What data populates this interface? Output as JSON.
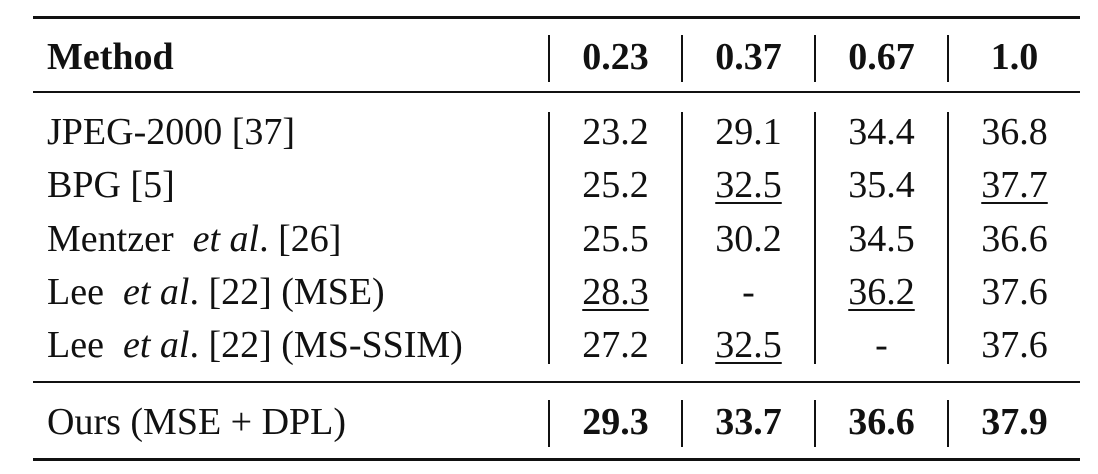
{
  "table": {
    "sections": [
      {
        "rows": [
          {
            "method": [
              {
                "text": "Method",
                "bold": true
              }
            ],
            "cells": [
              {
                "text": "0.23",
                "bold": true
              },
              {
                "text": "0.37",
                "bold": true
              },
              {
                "text": "0.67",
                "bold": true
              },
              {
                "text": "1.0",
                "bold": true
              }
            ]
          }
        ]
      },
      {
        "rows": [
          {
            "method": [
              {
                "text": "JPEG-2000 [37]"
              }
            ],
            "cells": [
              {
                "text": "23.2"
              },
              {
                "text": "29.1"
              },
              {
                "text": "34.4"
              },
              {
                "text": "36.8"
              }
            ]
          },
          {
            "method": [
              {
                "text": "BPG [5]"
              }
            ],
            "cells": [
              {
                "text": "25.2"
              },
              {
                "text": "32.5",
                "underline": true
              },
              {
                "text": "35.4"
              },
              {
                "text": "37.7",
                "underline": true
              }
            ]
          },
          {
            "method": [
              {
                "text": "Mentzer  "
              },
              {
                "text": "et al",
                "italic": true
              },
              {
                "text": ". [26]"
              }
            ],
            "cells": [
              {
                "text": "25.5"
              },
              {
                "text": "30.2"
              },
              {
                "text": "34.5"
              },
              {
                "text": "36.6"
              }
            ]
          },
          {
            "method": [
              {
                "text": "Lee  "
              },
              {
                "text": "et al",
                "italic": true
              },
              {
                "text": ". [22] (MSE)"
              }
            ],
            "cells": [
              {
                "text": "28.3",
                "underline": true
              },
              {
                "text": "-"
              },
              {
                "text": "36.2",
                "underline": true
              },
              {
                "text": "37.6"
              }
            ]
          },
          {
            "method": [
              {
                "text": "Lee  "
              },
              {
                "text": "et al",
                "italic": true
              },
              {
                "text": ". [22] (MS-SSIM)"
              }
            ],
            "cells": [
              {
                "text": "27.2"
              },
              {
                "text": "32.5",
                "underline": true
              },
              {
                "text": "-"
              },
              {
                "text": "37.6"
              }
            ]
          }
        ]
      },
      {
        "rows": [
          {
            "method": [
              {
                "text": "Ours (MSE + DPL)"
              }
            ],
            "cells": [
              {
                "text": "29.3",
                "bold": true
              },
              {
                "text": "33.7",
                "bold": true
              },
              {
                "text": "36.6",
                "bold": true
              },
              {
                "text": "37.9",
                "bold": true
              }
            ]
          }
        ]
      }
    ]
  }
}
